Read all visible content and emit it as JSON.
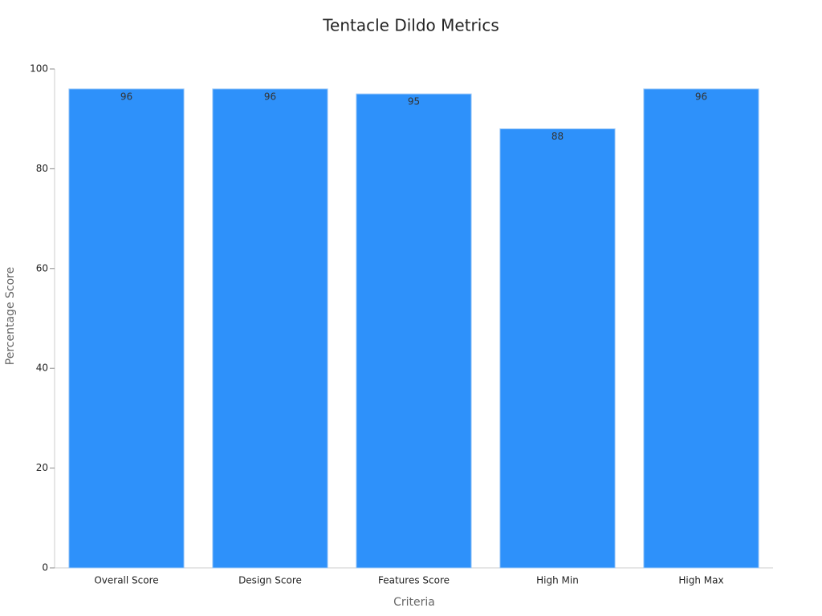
{
  "chart_data": {
    "type": "bar",
    "title": "Tentacle Dildo Metrics",
    "x_label": "Criteria",
    "y_label": "Percentage Score",
    "categories": [
      "Overall Score",
      "Design Score",
      "Features Score",
      "High Min",
      "High Max"
    ],
    "values": [
      96,
      96,
      95,
      88,
      96
    ],
    "color": "#2e91fa",
    "ylim": [
      0,
      100
    ],
    "yticks": [
      0,
      20,
      40,
      60,
      80,
      100
    ],
    "grid": false
  }
}
